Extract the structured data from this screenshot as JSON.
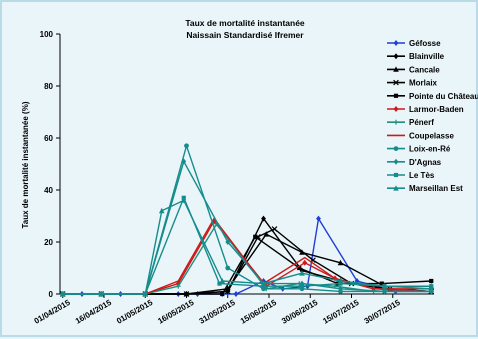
{
  "chart_data": {
    "type": "line",
    "title": "Taux de mortalité instantanée",
    "subtitle": "Naissain Standardisé Ifremer",
    "ylabel": "Taux de mortalité instantanée (%)",
    "xlabel": "",
    "ylim": [
      0,
      100
    ],
    "yticks": [
      "0",
      "20",
      "40",
      "60",
      "80",
      "100"
    ],
    "xlim": [
      "2015-03-31",
      "2015-08-14"
    ],
    "xticks": [
      "01/04/2015",
      "16/04/2015",
      "01/05/2015",
      "16/05/2015",
      "31/05/2015",
      "15/06/2015",
      "30/06/2015",
      "15/07/2015",
      "30/07/2015"
    ],
    "grid": false,
    "legend_position": "right",
    "series": [
      {
        "name": "Géfosse",
        "color": "#1f3fd6",
        "marker": "diamond",
        "points": [
          [
            "2015-04-01",
            0
          ],
          [
            "2015-04-08",
            0
          ],
          [
            "2015-04-15",
            0
          ],
          [
            "2015-04-22",
            0
          ],
          [
            "2015-05-01",
            0
          ],
          [
            "2015-05-13",
            0
          ],
          [
            "2015-05-20",
            0
          ],
          [
            "2015-05-29",
            0
          ],
          [
            "2015-06-03",
            0
          ],
          [
            "2015-06-13",
            5
          ],
          [
            "2015-06-20",
            2
          ],
          [
            "2015-06-29",
            3
          ],
          [
            "2015-07-03",
            29
          ],
          [
            "2015-07-17",
            5
          ],
          [
            "2015-07-31",
            1
          ],
          [
            "2015-08-13",
            1
          ]
        ]
      },
      {
        "name": "Blainville",
        "color": "#000000",
        "marker": "diamond",
        "points": [
          [
            "2015-04-01",
            0
          ],
          [
            "2015-04-15",
            0
          ],
          [
            "2015-05-01",
            0
          ],
          [
            "2015-05-16",
            0
          ],
          [
            "2015-05-31",
            1
          ],
          [
            "2015-06-13",
            29
          ],
          [
            "2015-06-27",
            9
          ],
          [
            "2015-07-11",
            5
          ],
          [
            "2015-07-27",
            2
          ],
          [
            "2015-08-13",
            1
          ]
        ]
      },
      {
        "name": "Cancale",
        "color": "#000000",
        "marker": "triangle",
        "points": [
          [
            "2015-04-01",
            0
          ],
          [
            "2015-04-15",
            0
          ],
          [
            "2015-05-01",
            0
          ],
          [
            "2015-05-16",
            0
          ],
          [
            "2015-05-31",
            2
          ],
          [
            "2015-06-14",
            23
          ],
          [
            "2015-06-27",
            16
          ],
          [
            "2015-07-11",
            12
          ],
          [
            "2015-07-27",
            3
          ],
          [
            "2015-08-13",
            3
          ]
        ]
      },
      {
        "name": "Morlaix",
        "color": "#000000",
        "marker": "x",
        "points": [
          [
            "2015-04-01",
            0
          ],
          [
            "2015-04-15",
            0
          ],
          [
            "2015-05-01",
            0
          ],
          [
            "2015-05-16",
            0
          ],
          [
            "2015-05-31",
            1
          ],
          [
            "2015-06-11",
            22
          ],
          [
            "2015-06-17",
            25
          ],
          [
            "2015-07-01",
            13
          ],
          [
            "2015-07-15",
            4
          ],
          [
            "2015-07-29",
            2
          ],
          [
            "2015-08-13",
            1
          ]
        ]
      },
      {
        "name": "Pointe du Château",
        "color": "#000000",
        "marker": "square",
        "points": [
          [
            "2015-04-01",
            0
          ],
          [
            "2015-04-15",
            0
          ],
          [
            "2015-05-01",
            0
          ],
          [
            "2015-05-16",
            0
          ],
          [
            "2015-05-29",
            0
          ],
          [
            "2015-06-10",
            22
          ],
          [
            "2015-06-26",
            10
          ],
          [
            "2015-07-10",
            4
          ],
          [
            "2015-07-26",
            4
          ],
          [
            "2015-08-13",
            5
          ]
        ]
      },
      {
        "name": "Larmor-Baden",
        "color": "#cc1a1a",
        "marker": "diamond",
        "points": [
          [
            "2015-04-01",
            0
          ],
          [
            "2015-04-15",
            0
          ],
          [
            "2015-05-01",
            0
          ],
          [
            "2015-05-13",
            4
          ],
          [
            "2015-05-26",
            28
          ],
          [
            "2015-06-14",
            3
          ],
          [
            "2015-06-28",
            12
          ],
          [
            "2015-07-09",
            6
          ],
          [
            "2015-07-23",
            2
          ],
          [
            "2015-08-13",
            1
          ]
        ]
      },
      {
        "name": "Pénerf",
        "color": "#1f9080",
        "marker": "plus",
        "points": [
          [
            "2015-04-01",
            0
          ],
          [
            "2015-04-15",
            0
          ],
          [
            "2015-05-01",
            0
          ],
          [
            "2015-05-13",
            3
          ],
          [
            "2015-05-27",
            27
          ],
          [
            "2015-06-14",
            2
          ],
          [
            "2015-06-26",
            4
          ],
          [
            "2015-07-09",
            3
          ],
          [
            "2015-07-23",
            1
          ],
          [
            "2015-08-13",
            1
          ]
        ]
      },
      {
        "name": "Coupelasse",
        "color": "#cc1a1a",
        "marker": "none",
        "points": [
          [
            "2015-04-01",
            0
          ],
          [
            "2015-04-15",
            0
          ],
          [
            "2015-05-01",
            0
          ],
          [
            "2015-05-13",
            5
          ],
          [
            "2015-05-26",
            29
          ],
          [
            "2015-06-13",
            4
          ],
          [
            "2015-06-28",
            14
          ],
          [
            "2015-07-09",
            6
          ],
          [
            "2015-07-23",
            2
          ],
          [
            "2015-08-13",
            2
          ]
        ]
      },
      {
        "name": "Loix-en-Ré",
        "color": "#168c8c",
        "marker": "circle",
        "points": [
          [
            "2015-04-01",
            0
          ],
          [
            "2015-04-15",
            0
          ],
          [
            "2015-05-01",
            0
          ],
          [
            "2015-05-16",
            57
          ],
          [
            "2015-05-31",
            10
          ],
          [
            "2015-06-13",
            2
          ],
          [
            "2015-06-27",
            2
          ],
          [
            "2015-07-11",
            1
          ],
          [
            "2015-07-27",
            1
          ],
          [
            "2015-08-13",
            1
          ]
        ]
      },
      {
        "name": "D'Agnas",
        "color": "#168c8c",
        "marker": "diamond",
        "points": [
          [
            "2015-04-01",
            0
          ],
          [
            "2015-04-15",
            0
          ],
          [
            "2015-05-01",
            0
          ],
          [
            "2015-05-15",
            51
          ],
          [
            "2015-05-31",
            20
          ],
          [
            "2015-06-13",
            4
          ],
          [
            "2015-06-27",
            4
          ],
          [
            "2015-07-11",
            2
          ],
          [
            "2015-07-27",
            1
          ],
          [
            "2015-08-13",
            1
          ]
        ]
      },
      {
        "name": "Le Tès",
        "color": "#168c8c",
        "marker": "square",
        "points": [
          [
            "2015-04-01",
            0
          ],
          [
            "2015-04-15",
            0
          ],
          [
            "2015-05-01",
            0
          ],
          [
            "2015-05-15",
            37
          ],
          [
            "2015-05-28",
            4
          ],
          [
            "2015-06-13",
            3
          ],
          [
            "2015-06-27",
            3
          ],
          [
            "2015-07-11",
            4
          ],
          [
            "2015-07-27",
            3
          ],
          [
            "2015-08-13",
            3
          ]
        ]
      },
      {
        "name": "Marseillan Est",
        "color": "#168c8c",
        "marker": "triangle",
        "points": [
          [
            "2015-04-01",
            0
          ],
          [
            "2015-04-15",
            0
          ],
          [
            "2015-05-01",
            0
          ],
          [
            "2015-05-07",
            32
          ],
          [
            "2015-05-15",
            36
          ],
          [
            "2015-05-29",
            5
          ],
          [
            "2015-06-13",
            4
          ],
          [
            "2015-06-27",
            8
          ],
          [
            "2015-07-11",
            5
          ],
          [
            "2015-07-27",
            3
          ],
          [
            "2015-08-13",
            2
          ]
        ]
      }
    ]
  }
}
